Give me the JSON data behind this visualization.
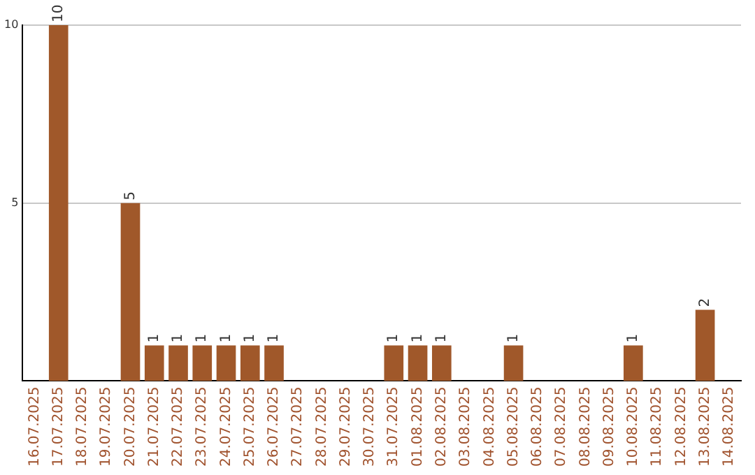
{
  "chart_data": {
    "type": "bar",
    "categories": [
      "16.07.2025",
      "17.07.2025",
      "18.07.2025",
      "19.07.2025",
      "20.07.2025",
      "21.07.2025",
      "22.07.2025",
      "23.07.2025",
      "24.07.2025",
      "25.07.2025",
      "26.07.2025",
      "27.07.2025",
      "28.07.2025",
      "29.07.2025",
      "30.07.2025",
      "31.07.2025",
      "01.08.2025",
      "02.08.2025",
      "03.08.2025",
      "04.08.2025",
      "05.08.2025",
      "06.08.2025",
      "07.08.2025",
      "08.08.2025",
      "09.08.2025",
      "10.08.2025",
      "11.08.2025",
      "12.08.2025",
      "13.08.2025",
      "14.08.2025"
    ],
    "values": [
      0,
      10,
      0,
      0,
      5,
      1,
      1,
      1,
      1,
      1,
      1,
      0,
      0,
      0,
      0,
      1,
      1,
      1,
      0,
      0,
      1,
      0,
      0,
      0,
      0,
      1,
      0,
      0,
      2,
      0
    ],
    "value_labels": [
      null,
      "10",
      null,
      null,
      "5",
      "1",
      "1",
      "1",
      "1",
      "1",
      "1",
      null,
      null,
      null,
      null,
      "1",
      "1",
      "1",
      null,
      null,
      "1",
      null,
      null,
      null,
      null,
      "1",
      null,
      null,
      "2",
      null
    ],
    "color": "#a0582a",
    "ylim": [
      0,
      10
    ],
    "yticks": [
      5,
      10
    ],
    "grid": "y",
    "legend": false
  }
}
